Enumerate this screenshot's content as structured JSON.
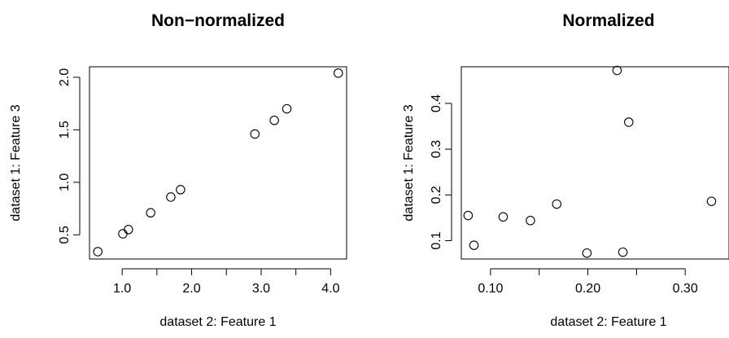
{
  "chart_data": [
    {
      "type": "scatter",
      "title": "Non−normalized",
      "xlabel": "dataset 2: Feature 1",
      "ylabel": "dataset 1: Feature 3",
      "xlim": [
        0.53,
        4.23
      ],
      "ylim": [
        0.27,
        2.1
      ],
      "xticks": [
        1.0,
        1.5,
        2.0,
        2.5,
        3.0,
        3.5,
        4.0
      ],
      "xticklabels": [
        "1.0",
        "",
        "2.0",
        "",
        "3.0",
        "",
        "4.0"
      ],
      "yticks": [
        0.5,
        1.0,
        1.5,
        2.0
      ],
      "yticklabels": [
        "0.5",
        "1.0",
        "1.5",
        "2.0"
      ],
      "grid": false,
      "points": [
        {
          "x": 0.65,
          "y": 0.34
        },
        {
          "x": 1.01,
          "y": 0.51
        },
        {
          "x": 1.09,
          "y": 0.55
        },
        {
          "x": 1.41,
          "y": 0.71
        },
        {
          "x": 1.7,
          "y": 0.86
        },
        {
          "x": 1.84,
          "y": 0.93
        },
        {
          "x": 2.91,
          "y": 1.46
        },
        {
          "x": 3.19,
          "y": 1.59
        },
        {
          "x": 3.37,
          "y": 1.7
        },
        {
          "x": 4.11,
          "y": 2.04
        }
      ]
    },
    {
      "type": "scatter",
      "title": "Normalized",
      "xlabel": "dataset 2: Feature 1",
      "ylabel": "dataset 1: Feature 3",
      "xlim": [
        0.07,
        0.345
      ],
      "ylim": [
        0.06,
        0.48
      ],
      "xticks": [
        0.1,
        0.15,
        0.2,
        0.25,
        0.3
      ],
      "xticklabels": [
        "0.10",
        "",
        "0.20",
        "",
        "0.30"
      ],
      "yticks": [
        0.1,
        0.2,
        0.3,
        0.4
      ],
      "yticklabels": [
        "0.1",
        "0.2",
        "0.3",
        "0.4"
      ],
      "grid": false,
      "points": [
        {
          "x": 0.077,
          "y": 0.155
        },
        {
          "x": 0.083,
          "y": 0.09
        },
        {
          "x": 0.113,
          "y": 0.152
        },
        {
          "x": 0.141,
          "y": 0.144
        },
        {
          "x": 0.168,
          "y": 0.18
        },
        {
          "x": 0.199,
          "y": 0.073
        },
        {
          "x": 0.23,
          "y": 0.472
        },
        {
          "x": 0.236,
          "y": 0.075
        },
        {
          "x": 0.242,
          "y": 0.359
        },
        {
          "x": 0.327,
          "y": 0.186
        }
      ]
    }
  ]
}
